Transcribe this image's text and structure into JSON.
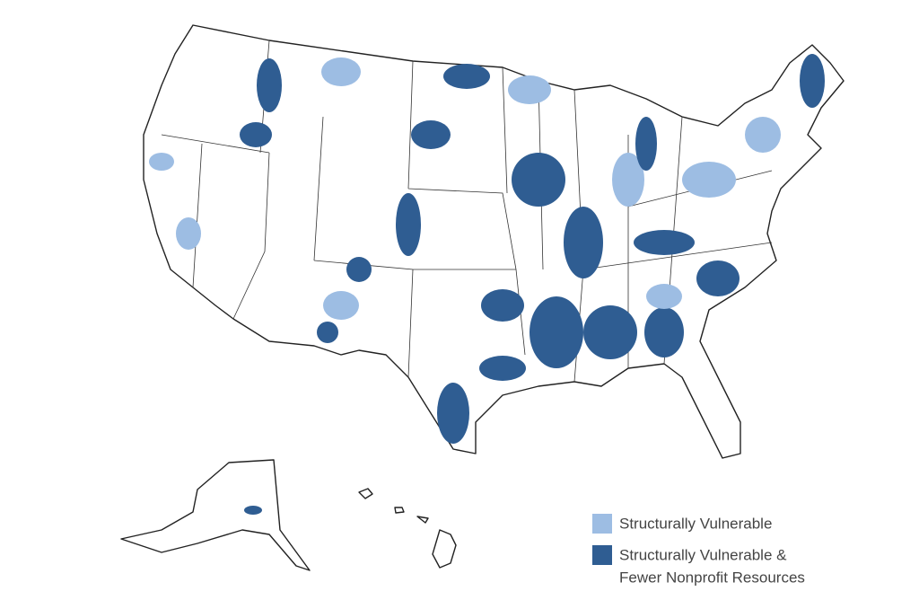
{
  "legend": {
    "items": [
      {
        "label": "Structurally Vulnerable",
        "color": "#9dbde3"
      },
      {
        "lines": [
          "Structurally Vulnerable &",
          "Fewer Nonprofit Resources"
        ],
        "color": "#2f5d92"
      }
    ]
  }
}
